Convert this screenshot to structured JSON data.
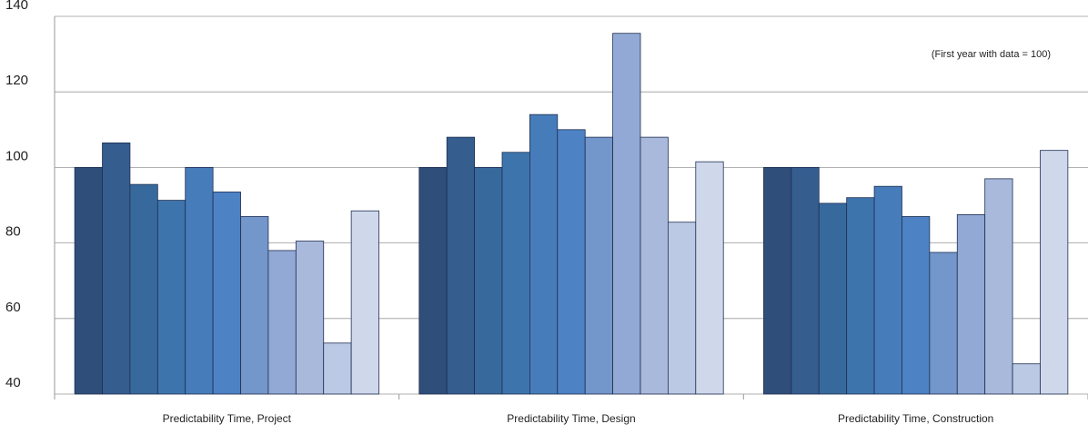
{
  "chart_data": {
    "type": "bar",
    "annotation": "(First year with data = 100)",
    "categories": [
      "Predictability Time, Project",
      "Predictability Time, Design",
      "Predictability Time, Construction"
    ],
    "series": [
      {
        "color": "#2f4e79",
        "values": [
          100,
          100,
          100
        ]
      },
      {
        "color": "#355d8e",
        "values": [
          106.5,
          108,
          100
        ]
      },
      {
        "color": "#38699d",
        "values": [
          95.5,
          100,
          90.5
        ]
      },
      {
        "color": "#3e74ac",
        "values": [
          91.3,
          104,
          92
        ]
      },
      {
        "color": "#467cb9",
        "values": [
          100,
          114,
          95
        ]
      },
      {
        "color": "#4d82c4",
        "values": [
          93.5,
          110,
          87
        ]
      },
      {
        "color": "#7396cb",
        "values": [
          87,
          108,
          77.5
        ]
      },
      {
        "color": "#91a9d4",
        "values": [
          78,
          135.5,
          87.5
        ]
      },
      {
        "color": "#a9b9dc",
        "values": [
          80.5,
          108,
          97
        ]
      },
      {
        "color": "#bcc9e4",
        "values": [
          53.5,
          85.5,
          48
        ]
      },
      {
        "color": "#cfd8eb",
        "values": [
          88.5,
          101.5,
          104.5
        ]
      }
    ],
    "ylim": [
      40,
      140
    ],
    "yticks": [
      40,
      60,
      80,
      100,
      120,
      140
    ],
    "grid": true
  }
}
